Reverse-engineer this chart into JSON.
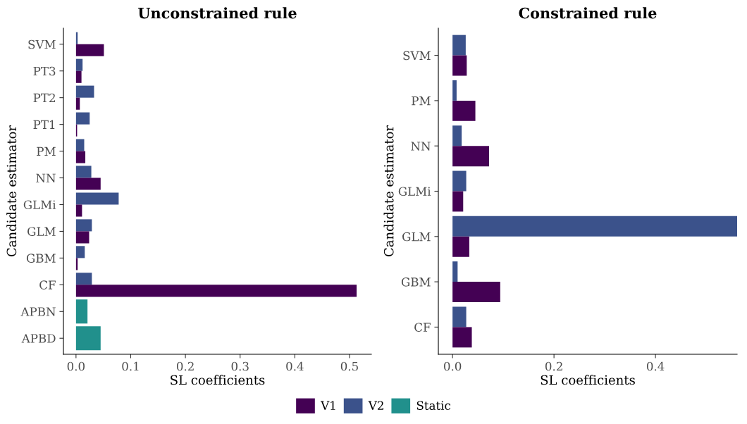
{
  "chart_data": [
    {
      "type": "bar",
      "orientation": "horizontal",
      "title": "Unconstrained rule",
      "xlabel": "SL coefficients",
      "ylabel": "Candidate estimator",
      "categories": [
        "SVM",
        "PT3",
        "PT2",
        "PT1",
        "PM",
        "NN",
        "GLMi",
        "GLM",
        "GBM",
        "CF",
        "APBN",
        "APBD"
      ],
      "xlim": [
        -0.023,
        0.54
      ],
      "xticks": [
        {
          "value": 0,
          "label": "0.0"
        },
        0.1,
        0.2,
        0.3,
        0.4,
        0.5
      ],
      "grid": false,
      "legend": "bottom",
      "series": [
        {
          "name": "V2",
          "color": "#3b528b",
          "values": [
            0.003,
            0.012,
            0.033,
            0.025,
            0.015,
            0.028,
            0.078,
            0.029,
            0.016,
            0.029,
            null,
            null
          ]
        },
        {
          "name": "V1",
          "color": "#440154",
          "values": [
            0.051,
            0.01,
            0.007,
            0.002,
            0.017,
            0.045,
            0.011,
            0.024,
            0.003,
            0.513,
            null,
            null
          ]
        },
        {
          "name": "Static",
          "color": "#21908c",
          "values": [
            null,
            null,
            null,
            null,
            null,
            null,
            null,
            null,
            null,
            null,
            0.021,
            0.045
          ]
        }
      ]
    },
    {
      "type": "bar",
      "orientation": "horizontal",
      "title": "Constrained rule",
      "xlabel": "SL coefficients",
      "ylabel": "Candidate estimator",
      "categories": [
        "SVM",
        "PM",
        "NN",
        "GLMi",
        "GLM",
        "GBM",
        "CF"
      ],
      "xlim": [
        -0.028,
        0.561
      ],
      "xticks": [
        {
          "value": 0,
          "label": "0.0"
        },
        0.2,
        0.4
      ],
      "grid": false,
      "legend": "bottom",
      "series": [
        {
          "name": "V2",
          "color": "#3b528b",
          "values": [
            0.026,
            0.008,
            0.018,
            0.027,
            0.561,
            0.01,
            0.027
          ]
        },
        {
          "name": "V1",
          "color": "#440154",
          "values": [
            0.028,
            0.045,
            0.072,
            0.021,
            0.033,
            0.094,
            0.038
          ]
        }
      ]
    }
  ]
}
